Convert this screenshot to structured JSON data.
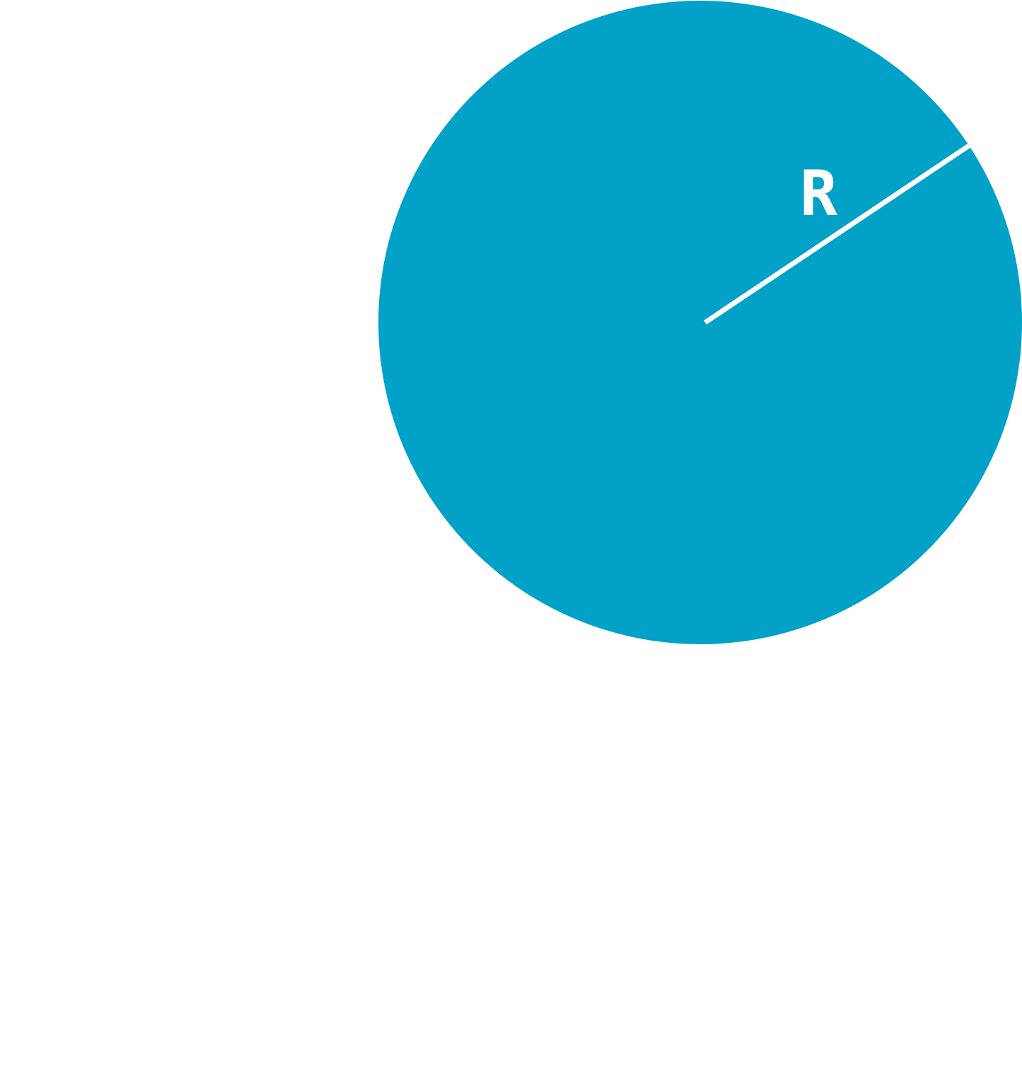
{
  "diagram": {
    "type": "circle-with-radius",
    "radius_label": "R",
    "colors": {
      "background": "#ffffff",
      "circle_fill": "#02a1c7",
      "radius_line": "#ffffff",
      "label": "#ffffff"
    }
  }
}
